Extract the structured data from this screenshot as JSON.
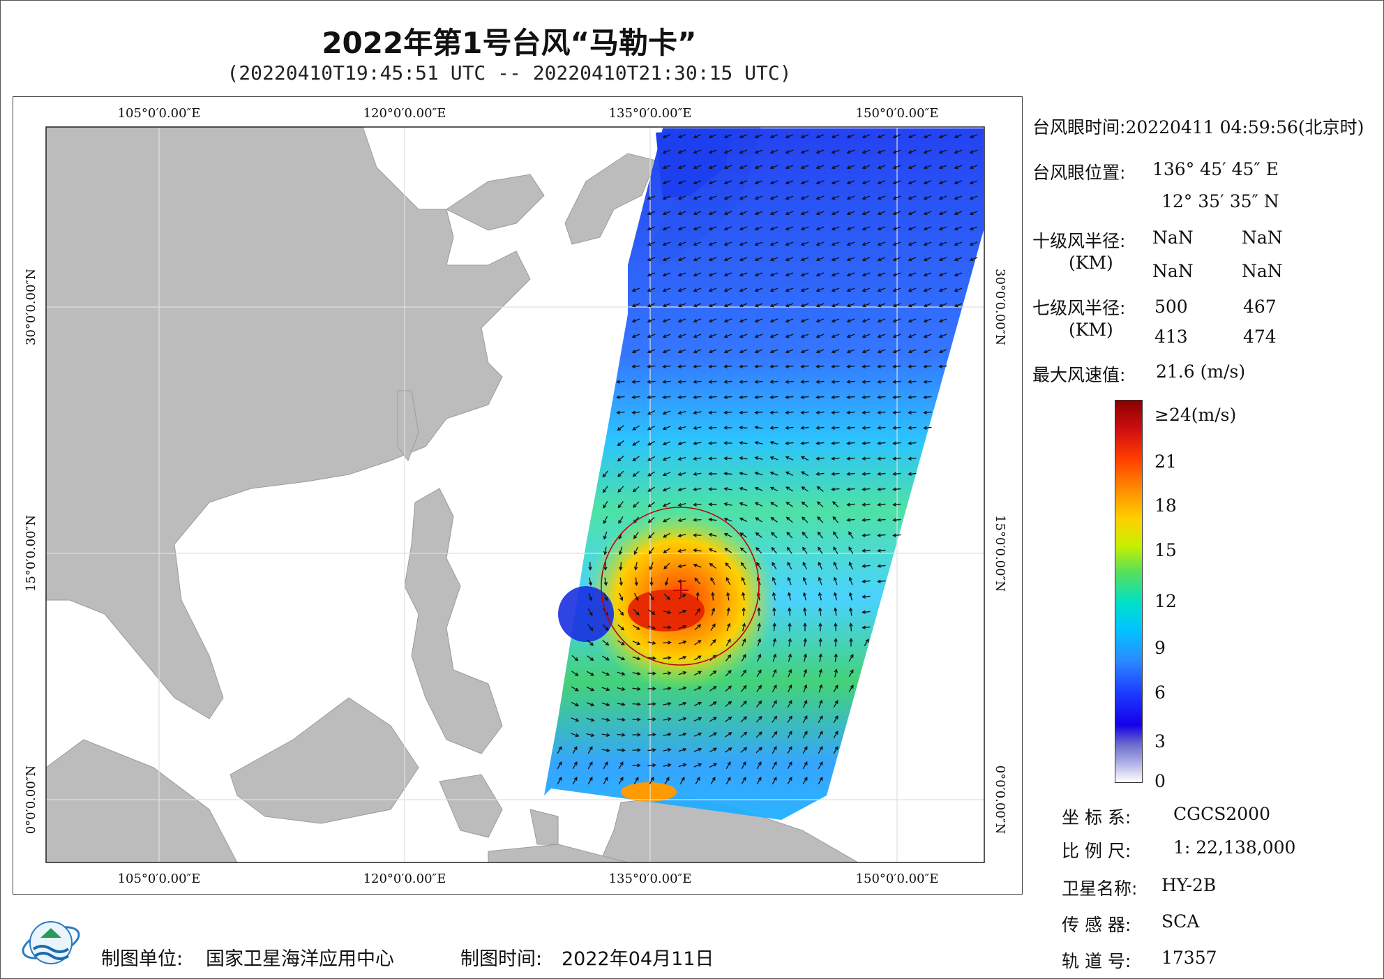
{
  "title": "2022年第1号台风“马勒卡”",
  "subtitle": "(20220410T19:45:51 UTC -- 20220410T21:30:15 UTC)",
  "map": {
    "lon_labels": [
      "105°0′0.00″E",
      "120°0′0.00″E",
      "135°0′0.00″E",
      "150°0′0.00″E"
    ],
    "lat_labels": [
      "30°0′0.00″N",
      "15°0′0.00″N",
      "0°0′0.00″N"
    ],
    "eye_marker": "+"
  },
  "info": {
    "eye_time_label": "台风眼时间:",
    "eye_time_value": "20220411 04:59:56(北京时)",
    "eye_pos_label": "台风眼位置:",
    "eye_lon": "136° 45′ 45″ E",
    "eye_lat": "12° 35′ 35″ N",
    "r10_label": "十级风半径:",
    "r10_unit": "(KM)",
    "r10_values": [
      "NaN",
      "NaN",
      "NaN",
      "NaN"
    ],
    "r7_label": "七级风半径:",
    "r7_unit": "(KM)",
    "r7_values": [
      "500",
      "467",
      "413",
      "474"
    ],
    "max_wind_label": "最大风速值:",
    "max_wind_value": "21.6  (m/s)"
  },
  "legend": {
    "ticks": [
      "≥24(m/s)",
      "21",
      "18",
      "15",
      "12",
      "9",
      "6",
      "3",
      "0"
    ],
    "colors": [
      "#8b0000",
      "#d21010",
      "#ff8a00",
      "#ffd000",
      "#56e05a",
      "#00c4ff",
      "#1c38ff",
      "#6a6acc",
      "#ffffff"
    ]
  },
  "meta": {
    "coord_label": "坐 标 系:",
    "coord_value": "CGCS2000",
    "scale_label": "比 例 尺:",
    "scale_value": "1: 22,138,000",
    "sat_label": "卫星名称:",
    "sat_value": "HY-2B",
    "sensor_label": "传 感 器:",
    "sensor_value": "SCA",
    "orbit_label": "轨 道 号:",
    "orbit_value": "17357"
  },
  "footer": {
    "maker_label": "制图单位:",
    "maker_value": "国家卫星海洋应用中心",
    "date_label": "制图时间:",
    "date_value": "2022年04月11日"
  }
}
